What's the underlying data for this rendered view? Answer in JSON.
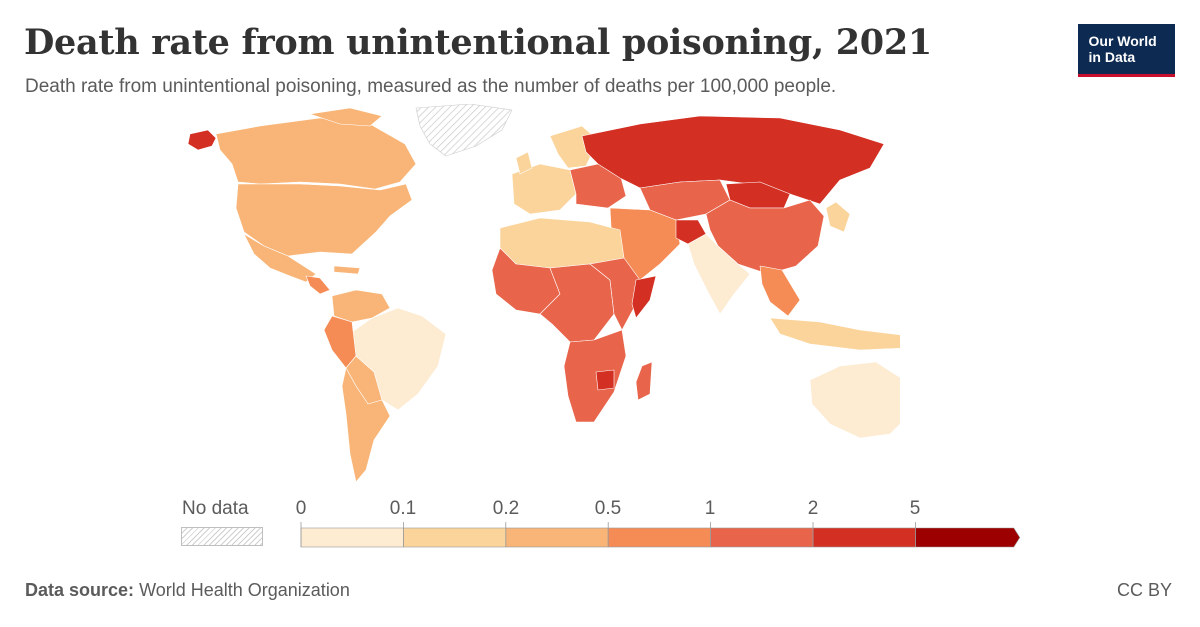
{
  "header": {
    "title": "Death rate from unintentional poisoning, 2021",
    "subtitle": "Death rate from unintentional poisoning, measured as the number of deaths per 100,000 people."
  },
  "logo": {
    "line1": "Our World",
    "line2": "in Data",
    "background": "#0d2b52",
    "accent": "#c8102e"
  },
  "legend": {
    "no_data_label": "No data",
    "ticks": [
      "0",
      "0.1",
      "0.2",
      "0.5",
      "1",
      "2",
      "5"
    ],
    "colors": [
      "#fdebd2",
      "#fbd49b",
      "#f8b577",
      "#f68c55",
      "#e8644a",
      "#d32f23",
      "#9d0000"
    ]
  },
  "footer": {
    "source_label": "Data source:",
    "source_value": "World Health Organization",
    "license": "CC BY"
  },
  "map_regions": [
    {
      "name": "Alaska",
      "color": "#d32f23"
    },
    {
      "name": "Canada",
      "color": "#f8b577"
    },
    {
      "name": "Greenland",
      "color": "nodata"
    },
    {
      "name": "United States",
      "color": "#f8b577"
    },
    {
      "name": "Mexico",
      "color": "#f8b577"
    },
    {
      "name": "Central America",
      "color": "#f68c55"
    },
    {
      "name": "Venezuela / Colombia",
      "color": "#f8b577"
    },
    {
      "name": "Brazil",
      "color": "#fdebd2"
    },
    {
      "name": "Peru",
      "color": "#f68c55"
    },
    {
      "name": "Bolivia / Paraguay",
      "color": "#f8b577"
    },
    {
      "name": "Argentina / Chile",
      "color": "#f8b577"
    },
    {
      "name": "Western Europe",
      "color": "#fbd49b"
    },
    {
      "name": "Eastern Europe",
      "color": "#e8644a"
    },
    {
      "name": "Russia",
      "color": "#d32f23"
    },
    {
      "name": "Kazakhstan / Central Asia",
      "color": "#e8644a"
    },
    {
      "name": "Mongolia",
      "color": "#d32f23"
    },
    {
      "name": "China",
      "color": "#e8644a"
    },
    {
      "name": "India",
      "color": "#fdebd2"
    },
    {
      "name": "Southeast Asia",
      "color": "#f68c55"
    },
    {
      "name": "Middle East",
      "color": "#f68c55"
    },
    {
      "name": "Afghanistan",
      "color": "#d32f23"
    },
    {
      "name": "North Africa",
      "color": "#fbd49b"
    },
    {
      "name": "Sahel / West Africa",
      "color": "#e8644a"
    },
    {
      "name": "Central Africa",
      "color": "#e8644a"
    },
    {
      "name": "East Africa",
      "color": "#e8644a"
    },
    {
      "name": "Somalia",
      "color": "#d32f23"
    },
    {
      "name": "Southern Africa",
      "color": "#e8644a"
    },
    {
      "name": "Zimbabwe",
      "color": "#d32f23"
    },
    {
      "name": "Madagascar",
      "color": "#e8644a"
    },
    {
      "name": "Japan / Korea",
      "color": "#fbd49b"
    },
    {
      "name": "Indonesia",
      "color": "#fbd49b"
    },
    {
      "name": "Australia",
      "color": "#fdebd2"
    },
    {
      "name": "New Zealand",
      "color": "#fbd49b"
    }
  ]
}
